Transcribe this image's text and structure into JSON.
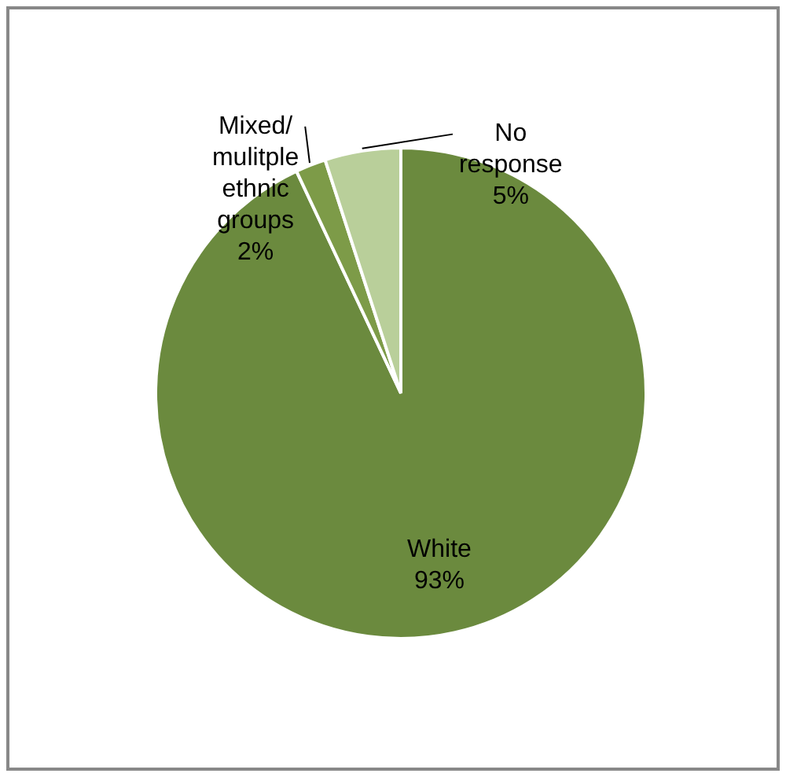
{
  "chart_data": {
    "type": "pie",
    "categories": [
      "White",
      "Mixed/ mulitple ethnic groups",
      "No response"
    ],
    "values": [
      93,
      2,
      5
    ],
    "colors": [
      "#6b8a3e",
      "#7d9b48",
      "#b9cf9a"
    ],
    "legend": false,
    "value_labels": [
      "93%",
      "2%",
      "5%"
    ]
  }
}
